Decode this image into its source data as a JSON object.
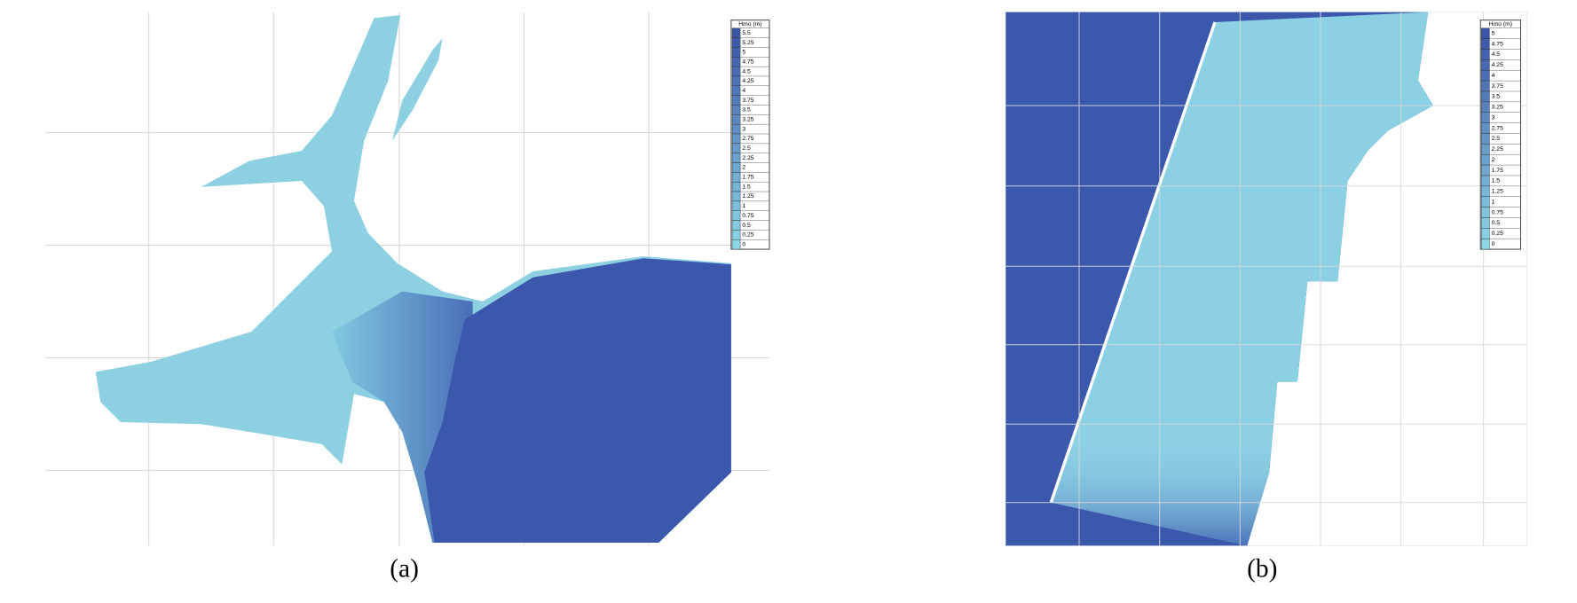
{
  "panels": [
    {
      "caption": "(a)",
      "legend": {
        "title": "Hmo (m)",
        "labels": [
          "5.5",
          "5.25",
          "5",
          "4.75",
          "4.5",
          "4.25",
          "4",
          "3.75",
          "3.5",
          "3.25",
          "3",
          "2.75",
          "2.5",
          "2.25",
          "2",
          "1.75",
          "1.5",
          "1.25",
          "1",
          "0.75",
          "0.5",
          "0.25",
          "0"
        ]
      }
    },
    {
      "caption": "(b)",
      "legend": {
        "title": "Hmo (m)",
        "labels": [
          "5",
          "4.75",
          "4.5",
          "4.25",
          "4",
          "3.75",
          "3.5",
          "3.25",
          "3",
          "2.75",
          "2.5",
          "2.25",
          "2",
          "1.75",
          "1.5",
          "1.25",
          "1",
          "0.75",
          "0.5",
          "0.25",
          "0"
        ]
      }
    }
  ]
}
